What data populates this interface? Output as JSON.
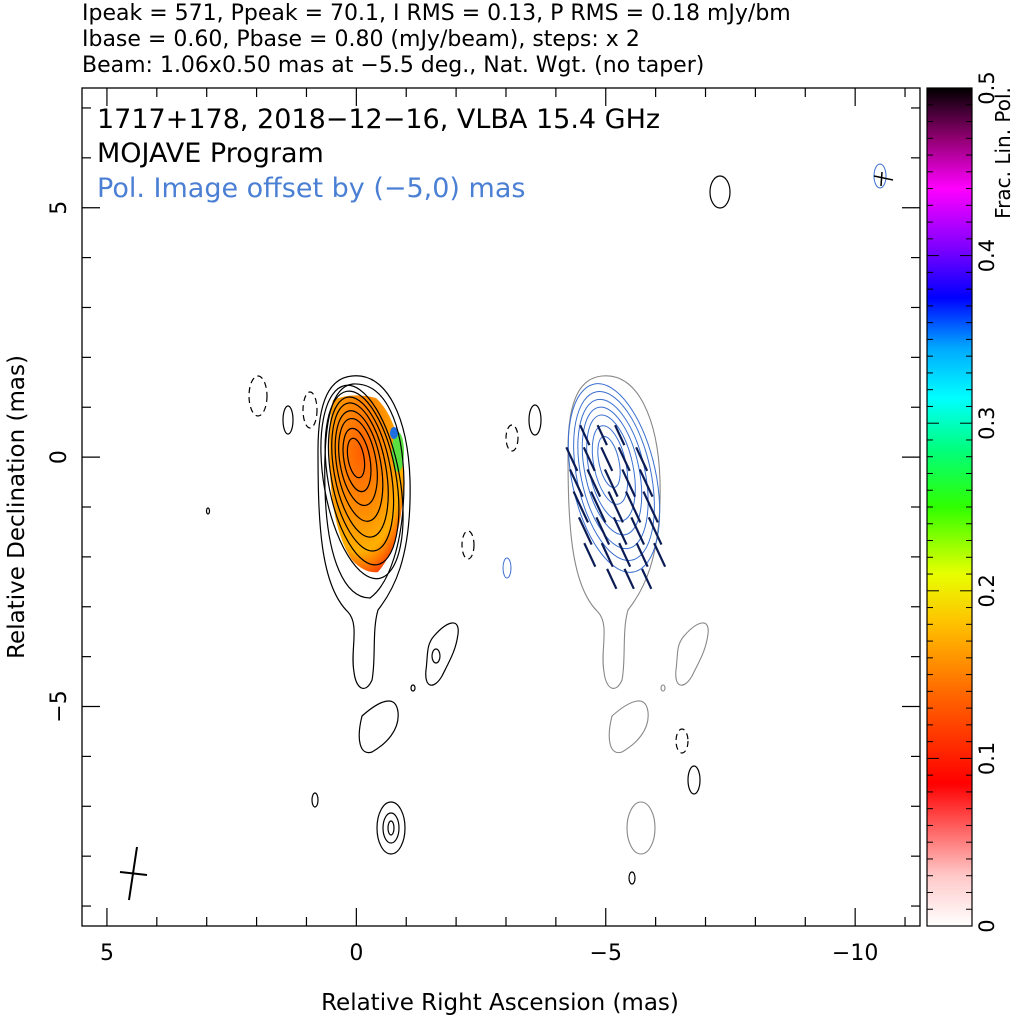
{
  "header": {
    "line1": "Ipeak = 571, Ppeak = 70.1, I RMS = 0.13, P RMS = 0.18 mJy/bm",
    "line2": "Ibase = 0.60, Pbase = 0.80 (mJy/beam), steps: x 2",
    "line3": "Beam: 1.06x0.50 mas at −5.5 deg., Nat. Wgt. (no taper)"
  },
  "chart_data": {
    "type": "heatmap",
    "annotations": {
      "source_line": "1717+178, 2018−12−16, VLBA 15.4 GHz",
      "program_line": "MOJAVE Program",
      "offset_note": "Pol. Image offset by (−5,0) mas"
    },
    "xlabel": "Relative Right Ascension (mas)",
    "ylabel": "Relative Declination (mas)",
    "xlim": [
      5.5,
      -11.3
    ],
    "ylim": [
      -9.4,
      7.4
    ],
    "x_ticks": [
      {
        "v": 5,
        "label": "5"
      },
      {
        "v": 0,
        "label": "0"
      },
      {
        "v": -5,
        "label": "−5"
      },
      {
        "v": -10,
        "label": "−10"
      }
    ],
    "y_ticks": [
      {
        "v": 5,
        "label": "5"
      },
      {
        "v": 0,
        "label": "0"
      },
      {
        "v": -5,
        "label": "−5"
      }
    ],
    "colorbar": {
      "label": "Frac. Lin. Pol.",
      "range": [
        0,
        0.5
      ],
      "ticks": [
        {
          "v": 0,
          "label": "0"
        },
        {
          "v": 0.1,
          "label": "0.1"
        },
        {
          "v": 0.2,
          "label": "0.2"
        },
        {
          "v": 0.3,
          "label": "0.3"
        },
        {
          "v": 0.4,
          "label": "0.4"
        },
        {
          "v": 0.5,
          "label": "0.5"
        }
      ]
    },
    "stokes_i_image": {
      "core_position": [
        0,
        0
      ],
      "contour_levels_mJy_per_beam": [
        0.6,
        1.2,
        2.4,
        4.8,
        9.6,
        19.2,
        38.4,
        76.8,
        153.6,
        307.2
      ],
      "features": [
        {
          "x": 0.0,
          "y": -4.8,
          "note": "jet tail"
        },
        {
          "x": -1.6,
          "y": -4.0
        },
        {
          "x": -0.6,
          "y": -5.5
        },
        {
          "x": -0.8,
          "y": -7.4
        },
        {
          "x": 2.0,
          "y": 1.3,
          "negative": true
        }
      ]
    },
    "fractional_polarization": {
      "region_x": [
        -1.0,
        0.3
      ],
      "region_y": [
        -2.3,
        1.2
      ],
      "typical": 0.12,
      "max": 0.35
    },
    "evpa_sticks": {
      "center": [
        -5.2,
        -1.0
      ],
      "orientation_deg": 25
    },
    "restoring_beam": {
      "major_mas": 1.06,
      "minor_mas": 0.5,
      "pa_deg": -5.5,
      "drawn_at": [
        4.5,
        -8.3
      ]
    },
    "colors": {
      "stokes_i_contour": "#000000",
      "polarization_contour": "#3a6fd0",
      "offset_note": "#4a7fd4",
      "evpa_stick": "#0b1c55"
    }
  }
}
